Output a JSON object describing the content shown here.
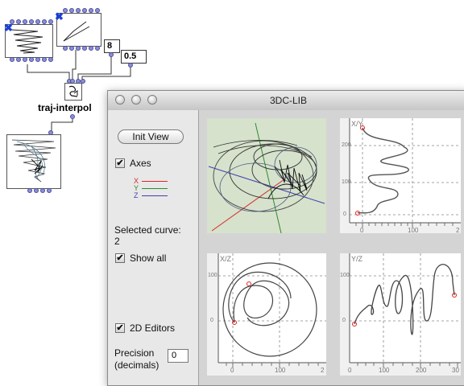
{
  "patch": {
    "traj_interpol_label": "traj-interpol",
    "number_box_1": "8",
    "number_box_2": "0.5"
  },
  "window": {
    "title": "3DC-LIB",
    "init_view_label": "Init View",
    "axes_label": "Axes",
    "axes": [
      {
        "name": "X",
        "color": "#d9262a"
      },
      {
        "name": "Y",
        "color": "#2f8a2f"
      },
      {
        "name": "Z",
        "color": "#4040b0"
      }
    ],
    "selected_curve_label": "Selected curve:",
    "selected_curve_value": "2",
    "show_all_label": "Show all",
    "editors_2d_label": "2D Editors",
    "precision_label_1": "Precision",
    "precision_label_2": "(decimals)",
    "precision_value": "0",
    "check_mark": "✔"
  },
  "views": {
    "xy": {
      "title": "X/Y",
      "y_ticks": [
        "200",
        "100",
        "0"
      ],
      "x_ticks": [
        "0",
        "100",
        "2"
      ]
    },
    "xz": {
      "title": "X/Z",
      "y_ticks": [
        "100",
        "0"
      ],
      "x_ticks": [
        "0",
        "100",
        "2"
      ]
    },
    "yz": {
      "title": "Y/Z",
      "y_ticks": [
        "100",
        "0"
      ],
      "x_ticks": [
        "0",
        "100",
        "200",
        "30"
      ]
    }
  }
}
